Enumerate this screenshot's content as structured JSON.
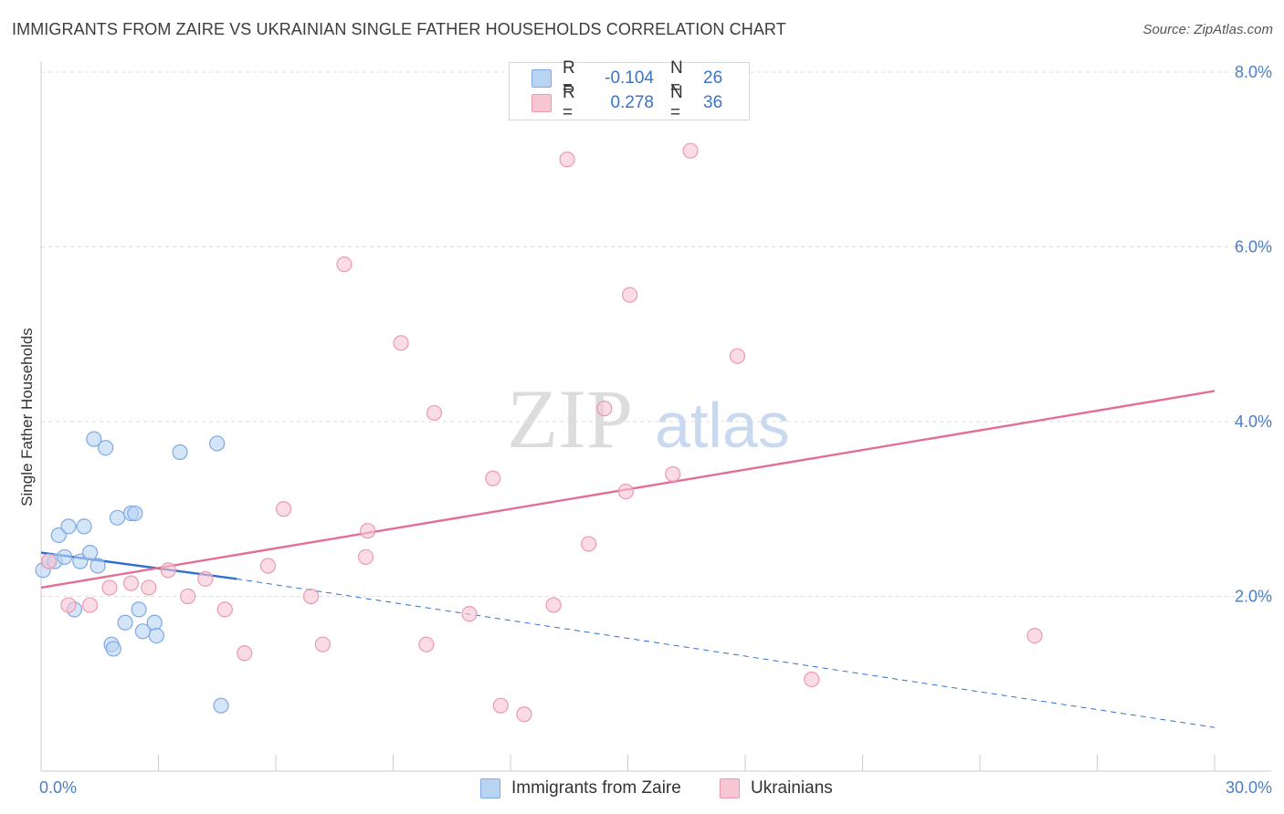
{
  "title": "IMMIGRANTS FROM ZAIRE VS UKRAINIAN SINGLE FATHER HOUSEHOLDS CORRELATION CHART",
  "source": "Source: ZipAtlas.com",
  "watermark": {
    "zip": "ZIP",
    "atlas": "atlas"
  },
  "colors": {
    "blue_fill": "#b9d3f3",
    "blue_stroke": "#7ea9e3",
    "blue_line": "#2f6fcf",
    "pink_fill": "#f8c5d3",
    "pink_stroke": "#e99ab1",
    "pink_line": "#e46e93",
    "tick": "#4a7ec8",
    "grid": "#dddddd"
  },
  "stats": [
    {
      "label": "R =",
      "r": "-0.104",
      "n_label": "N =",
      "n": "26",
      "color": "#b9d3f3"
    },
    {
      "label": "R =",
      "r": " 0.278",
      "n_label": "N =",
      "n": "36",
      "color": "#f8c5d3"
    }
  ],
  "legend": [
    {
      "label": "Immigrants from Zaire",
      "color": "#b9d3f3"
    },
    {
      "label": "Ukrainians",
      "color": "#f8c5d3"
    }
  ],
  "chart_data": {
    "type": "scatter",
    "title": "IMMIGRANTS FROM ZAIRE VS UKRAINIAN SINGLE FATHER HOUSEHOLDS CORRELATION CHART",
    "xlabel": "",
    "ylabel": "Single Father Households",
    "x_tick_labels": [
      "0.0%",
      "30.0%"
    ],
    "y_tick_labels": [
      "2.0%",
      "4.0%",
      "6.0%",
      "8.0%"
    ],
    "y_ticks": [
      2.0,
      4.0,
      6.0,
      8.0
    ],
    "xlim": [
      0,
      30
    ],
    "ylim": [
      0,
      8
    ],
    "grid": true,
    "legend_position": "bottom",
    "series": [
      {
        "name": "Immigrants from Zaire",
        "points": [
          [
            0.05,
            2.3
          ],
          [
            0.2,
            2.4
          ],
          [
            0.35,
            2.4
          ],
          [
            0.45,
            2.7
          ],
          [
            0.6,
            2.45
          ],
          [
            0.7,
            2.8
          ],
          [
            0.85,
            1.85
          ],
          [
            1.0,
            2.4
          ],
          [
            1.1,
            2.8
          ],
          [
            1.25,
            2.5
          ],
          [
            1.35,
            3.8
          ],
          [
            1.45,
            2.35
          ],
          [
            1.65,
            3.7
          ],
          [
            1.8,
            1.45
          ],
          [
            1.85,
            1.4
          ],
          [
            1.95,
            2.9
          ],
          [
            2.15,
            1.7
          ],
          [
            2.3,
            2.95
          ],
          [
            2.4,
            2.95
          ],
          [
            2.5,
            1.85
          ],
          [
            2.6,
            1.6
          ],
          [
            2.9,
            1.7
          ],
          [
            2.95,
            1.55
          ],
          [
            3.55,
            3.65
          ],
          [
            4.5,
            3.75
          ],
          [
            4.6,
            0.75
          ]
        ],
        "trend": {
          "x0": 0.0,
          "y0": 2.5,
          "x1": 5.0,
          "y1": 2.2,
          "dashed_to_x": 30.0,
          "dashed_to_y": 0.5
        }
      },
      {
        "name": "Ukrainians",
        "points": [
          [
            0.2,
            2.4
          ],
          [
            0.7,
            1.9
          ],
          [
            1.25,
            1.9
          ],
          [
            1.75,
            2.1
          ],
          [
            2.3,
            2.15
          ],
          [
            2.75,
            2.1
          ],
          [
            3.25,
            2.3
          ],
          [
            3.75,
            2.0
          ],
          [
            4.2,
            2.2
          ],
          [
            4.7,
            1.85
          ],
          [
            5.2,
            1.35
          ],
          [
            5.8,
            2.35
          ],
          [
            6.2,
            3.0
          ],
          [
            6.9,
            2.0
          ],
          [
            7.2,
            1.45
          ],
          [
            7.75,
            5.8
          ],
          [
            8.3,
            2.45
          ],
          [
            8.35,
            2.75
          ],
          [
            9.2,
            4.9
          ],
          [
            9.85,
            1.45
          ],
          [
            10.05,
            4.1
          ],
          [
            10.95,
            1.8
          ],
          [
            11.55,
            3.35
          ],
          [
            11.75,
            0.75
          ],
          [
            12.35,
            0.65
          ],
          [
            13.1,
            1.9
          ],
          [
            13.45,
            7.0
          ],
          [
            14.0,
            2.6
          ],
          [
            14.4,
            4.15
          ],
          [
            14.95,
            3.2
          ],
          [
            15.05,
            5.45
          ],
          [
            16.15,
            3.4
          ],
          [
            16.6,
            7.1
          ],
          [
            17.8,
            4.75
          ],
          [
            19.7,
            1.05
          ],
          [
            25.4,
            1.55
          ]
        ],
        "trend": {
          "x0": 0.0,
          "y0": 2.1,
          "x1": 30.0,
          "y1": 4.35
        }
      }
    ]
  }
}
